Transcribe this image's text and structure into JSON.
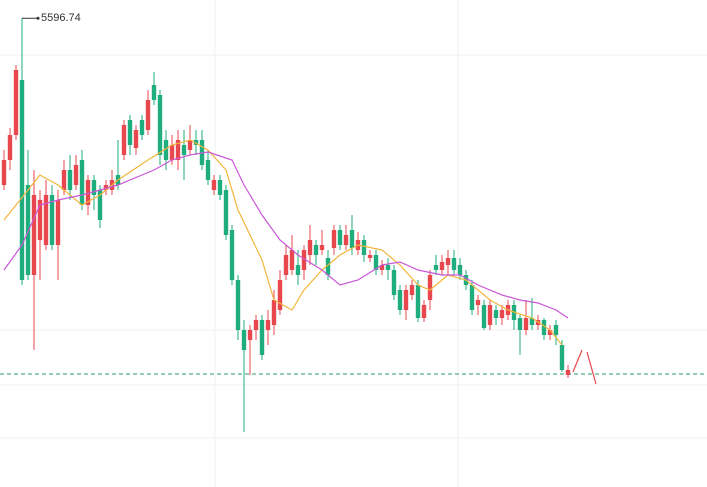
{
  "chart_data": {
    "type": "candlestick",
    "up_color": "#e8484d",
    "down_color": "#1fad7e",
    "ylim": [
      5128,
      5615
    ],
    "open": [
      5430,
      5455,
      5480,
      5535,
      5430,
      5340,
      5375,
      5370,
      5420,
      5370,
      5425,
      5445,
      5430,
      5455,
      5410,
      5435,
      5425,
      5425,
      5425,
      5440,
      5460,
      5495,
      5467,
      5495,
      5485,
      5530,
      5520,
      5475,
      5455,
      5455,
      5470,
      5465,
      5475,
      5475,
      5455,
      5425,
      5435,
      5425,
      5385,
      5335,
      5285,
      5275,
      5285,
      5295,
      5285,
      5290,
      5305,
      5340,
      5345,
      5350,
      5345,
      5360,
      5370,
      5365,
      5357,
      5367,
      5385,
      5370,
      5385,
      5365,
      5375,
      5357,
      5360,
      5345,
      5350,
      5345,
      5325,
      5305,
      5320,
      5330,
      5297,
      5315,
      5350,
      5345,
      5350,
      5357,
      5350,
      5340,
      5330,
      5310,
      5310,
      5290,
      5305,
      5297,
      5300,
      5310,
      5297,
      5285,
      5297,
      5290,
      5295,
      5280,
      5290,
      5270,
      5240
    ],
    "high": [
      5465,
      5487,
      5550,
      5596.74,
      5465,
      5445,
      5425,
      5435,
      5430,
      5425,
      5455,
      5460,
      5460,
      5465,
      5440,
      5440,
      5430,
      5435,
      5445,
      5475,
      5495,
      5500,
      5490,
      5500,
      5525,
      5543,
      5525,
      5485,
      5480,
      5485,
      5485,
      5490,
      5485,
      5485,
      5465,
      5440,
      5440,
      5430,
      5390,
      5340,
      5295,
      5290,
      5300,
      5300,
      5305,
      5325,
      5345,
      5370,
      5380,
      5365,
      5370,
      5390,
      5375,
      5385,
      5365,
      5390,
      5390,
      5390,
      5400,
      5383,
      5380,
      5365,
      5365,
      5355,
      5357,
      5350,
      5330,
      5330,
      5335,
      5335,
      5315,
      5345,
      5360,
      5360,
      5365,
      5365,
      5357,
      5345,
      5335,
      5320,
      5315,
      5315,
      5310,
      5310,
      5315,
      5315,
      5300,
      5315,
      5317,
      5300,
      5297,
      5290,
      5295,
      5275,
      5250
    ],
    "low": [
      5425,
      5445,
      5475,
      5330,
      5335,
      5265,
      5335,
      5365,
      5365,
      5335,
      5420,
      5415,
      5425,
      5405,
      5400,
      5405,
      5387,
      5420,
      5420,
      5425,
      5455,
      5460,
      5460,
      5475,
      5480,
      5510,
      5450,
      5445,
      5450,
      5445,
      5435,
      5460,
      5460,
      5445,
      5430,
      5420,
      5415,
      5375,
      5330,
      5275,
      5183,
      5240,
      5275,
      5255,
      5270,
      5280,
      5300,
      5335,
      5340,
      5330,
      5335,
      5350,
      5350,
      5360,
      5335,
      5360,
      5365,
      5365,
      5360,
      5360,
      5353,
      5353,
      5340,
      5340,
      5335,
      5315,
      5300,
      5295,
      5315,
      5293,
      5293,
      5305,
      5340,
      5340,
      5340,
      5340,
      5335,
      5325,
      5300,
      5300,
      5285,
      5285,
      5290,
      5290,
      5295,
      5285,
      5260,
      5280,
      5285,
      5285,
      5275,
      5275,
      5270,
      5243,
      5237
    ],
    "close": [
      5455,
      5480,
      5545,
      5335,
      5340,
      5420,
      5415,
      5420,
      5370,
      5415,
      5445,
      5425,
      5450,
      5410,
      5435,
      5420,
      5395,
      5430,
      5435,
      5430,
      5490,
      5470,
      5485,
      5480,
      5515,
      5515,
      5460,
      5455,
      5470,
      5475,
      5460,
      5475,
      5470,
      5450,
      5435,
      5435,
      5420,
      5380,
      5335,
      5285,
      5265,
      5285,
      5295,
      5260,
      5295,
      5315,
      5335,
      5360,
      5365,
      5340,
      5365,
      5375,
      5360,
      5370,
      5340,
      5385,
      5370,
      5380,
      5367,
      5375,
      5360,
      5360,
      5345,
      5350,
      5345,
      5320,
      5305,
      5325,
      5330,
      5297,
      5310,
      5340,
      5345,
      5353,
      5357,
      5345,
      5340,
      5330,
      5305,
      5315,
      5287,
      5310,
      5297,
      5305,
      5310,
      5295,
      5285,
      5297,
      5290,
      5295,
      5280,
      5285,
      5280,
      5245,
      5245
    ],
    "series": [
      {
        "type": "line",
        "color": "#f3b53a",
        "x": [
          0,
          6,
          9,
          13,
          16,
          19,
          24,
          28,
          31,
          34,
          37,
          39,
          43,
          45,
          48,
          50,
          53,
          56,
          59,
          63,
          66,
          69,
          71,
          74,
          77,
          81,
          84,
          88,
          91,
          93
        ],
        "values": [
          5395,
          5440,
          5430,
          5410,
          5420,
          5435,
          5455,
          5470,
          5475,
          5465,
          5445,
          5405,
          5355,
          5315,
          5305,
          5325,
          5345,
          5360,
          5370,
          5365,
          5350,
          5330,
          5325,
          5340,
          5335,
          5315,
          5305,
          5297,
          5285,
          5270
        ]
      },
      {
        "type": "line",
        "color": "#c957d6",
        "x": [
          0,
          3,
          6,
          9,
          13,
          16,
          19,
          23,
          25,
          28,
          31,
          34,
          38,
          40,
          43,
          46,
          49,
          53,
          56,
          59,
          63,
          66,
          69,
          73,
          76,
          79,
          83,
          86,
          89,
          92,
          94
        ],
        "values": [
          5345,
          5370,
          5410,
          5415,
          5420,
          5425,
          5430,
          5440,
          5445,
          5455,
          5460,
          5463,
          5455,
          5430,
          5400,
          5375,
          5360,
          5345,
          5330,
          5335,
          5350,
          5353,
          5345,
          5340,
          5340,
          5330,
          5320,
          5315,
          5312,
          5305,
          5297
        ]
      }
    ],
    "current_price": 5241,
    "current_price_color": "#2a9d6f"
  }
}
